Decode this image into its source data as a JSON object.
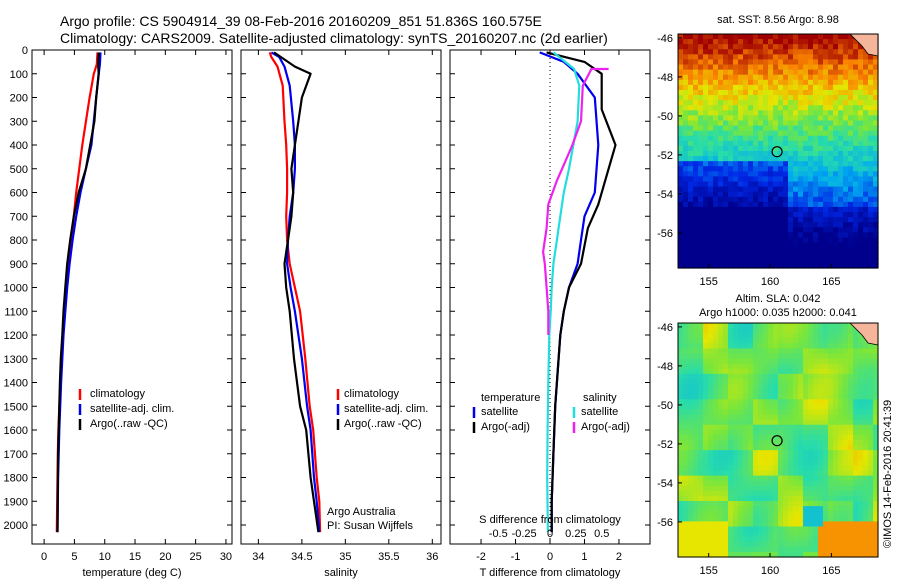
{
  "title": {
    "line1": "Argo profile: CS 5904914_39 08-Feb-2016 20160209_851 51.836S 160.575E",
    "line2": "Climatology: CARS2009. Satellite-adjusted climatology: synTS_20160207.nc (2d earlier)"
  },
  "colors": {
    "climatology": "#ff0000",
    "satellite": "#0000ee",
    "argo": "#000000",
    "sat_salinity": "#22dddd",
    "argo_salinity_adj": "#ee22ee",
    "land": "#f4b59a"
  },
  "chart_data": [
    {
      "type": "line",
      "xlabel": "temperature (deg C)",
      "ylabel": "",
      "xlim": [
        -2,
        31
      ],
      "ylim": [
        2080,
        0
      ],
      "x_ticks": [
        0,
        5,
        10,
        15,
        20,
        25,
        30
      ],
      "y_ticks": [
        0,
        100,
        200,
        300,
        400,
        500,
        600,
        700,
        800,
        900,
        1000,
        1100,
        1200,
        1300,
        1400,
        1500,
        1600,
        1700,
        1800,
        1900,
        2000
      ],
      "legend": [
        "climatology",
        "satellite-adj. clim.",
        "Argo(..raw -QC)"
      ],
      "legend_position": "lower-middle",
      "series": [
        {
          "name": "climatology",
          "color": "#ff0000",
          "x": [
            8.8,
            8.7,
            8.2,
            7.5,
            6.3,
            5.3,
            4.9,
            4.5,
            4.1,
            3.7,
            3.4,
            3.1,
            2.9,
            2.7,
            2.5,
            2.35,
            2.25,
            2.2,
            2.15,
            2.1
          ],
          "y": [
            10,
            60,
            100,
            200,
            400,
            600,
            700,
            800,
            900,
            1000,
            1100,
            1200,
            1300,
            1400,
            1500,
            1600,
            1700,
            1800,
            1900,
            2030
          ]
        },
        {
          "name": "satellite-adj. clim.",
          "color": "#0000ee",
          "x": [
            9.3,
            9.2,
            9.0,
            8.6,
            7.8,
            6.9,
            6.0,
            5.3,
            4.7,
            4.2,
            3.8,
            3.5,
            3.2,
            3.0,
            2.8,
            2.65,
            2.5,
            2.4,
            2.3,
            2.2
          ],
          "y": [
            10,
            60,
            100,
            200,
            400,
            500,
            600,
            700,
            800,
            900,
            1000,
            1100,
            1200,
            1300,
            1400,
            1500,
            1600,
            1700,
            1800,
            2030
          ]
        },
        {
          "name": "Argo(..raw -QC)",
          "color": "#000000",
          "x": [
            9.0,
            8.9,
            9.0,
            8.6,
            8.3,
            7.6,
            6.9,
            5.7,
            4.9,
            4.3,
            3.8,
            3.5,
            3.2,
            3.0,
            2.75,
            2.6,
            2.5,
            2.4,
            2.3,
            2.2
          ],
          "y": [
            10,
            60,
            100,
            200,
            300,
            400,
            500,
            600,
            700,
            800,
            900,
            1000,
            1100,
            1200,
            1300,
            1400,
            1500,
            1600,
            1700,
            2030
          ]
        }
      ]
    },
    {
      "type": "line",
      "xlabel": "salinity",
      "xlim": [
        33.8,
        36.1
      ],
      "ylim": [
        2080,
        0
      ],
      "x_ticks": [
        34,
        34.5,
        35,
        35.5,
        36
      ],
      "legend": [
        "climatology",
        "satellite-adj. clim.",
        "Argo(..raw -QC)"
      ],
      "legend_position": "lower-right",
      "annotation": [
        "Argo Australia",
        "PI: Susan Wijffels"
      ],
      "series": [
        {
          "name": "climatology",
          "color": "#ff0000",
          "x": [
            34.13,
            34.15,
            34.22,
            34.28,
            34.3,
            34.32,
            34.33,
            34.33,
            34.32,
            34.33,
            34.36,
            34.42,
            34.48,
            34.54,
            34.59,
            34.63,
            34.67,
            34.7,
            34.71
          ],
          "y": [
            10,
            30,
            70,
            150,
            300,
            400,
            500,
            600,
            700,
            800,
            900,
            1000,
            1100,
            1300,
            1500,
            1600,
            1800,
            1900,
            2030
          ]
        },
        {
          "name": "satellite-adj. clim.",
          "color": "#0000ee",
          "x": [
            34.15,
            34.24,
            34.3,
            34.36,
            34.4,
            34.42,
            34.42,
            34.4,
            34.36,
            34.34,
            34.33,
            34.37,
            34.42,
            34.5,
            34.56,
            34.6,
            34.64,
            34.67,
            34.7
          ],
          "y": [
            10,
            30,
            70,
            150,
            300,
            400,
            500,
            600,
            700,
            800,
            900,
            1000,
            1100,
            1300,
            1500,
            1600,
            1800,
            1900,
            2030
          ]
        },
        {
          "name": "Argo(..raw -QC)",
          "color": "#000000",
          "x": [
            34.18,
            34.3,
            34.42,
            34.6,
            34.5,
            34.42,
            34.38,
            34.4,
            34.38,
            34.34,
            34.3,
            34.32,
            34.36,
            34.41,
            34.48,
            34.55,
            34.6,
            34.64,
            34.69
          ],
          "y": [
            10,
            40,
            70,
            100,
            200,
            400,
            500,
            600,
            700,
            800,
            900,
            1000,
            1100,
            1300,
            1500,
            1600,
            1800,
            1900,
            2030
          ]
        }
      ]
    },
    {
      "type": "line",
      "xlabel": "T difference from climatology",
      "xlabel_top": "S difference from climatology",
      "xlim": [
        -2.9,
        2.9
      ],
      "ylim": [
        2080,
        0
      ],
      "x_ticks": [
        -2,
        -1,
        0,
        1,
        2
      ],
      "x_ticks_s": [
        -0.5,
        -0.25,
        0,
        0.25,
        0.5
      ],
      "legend_temperature": {
        "title": "temperature",
        "items": [
          "satellite",
          "Argo(-adj)"
        ]
      },
      "legend_salinity": {
        "title": "salinity",
        "items": [
          "satellite",
          "Argo(-adj)"
        ]
      },
      "series": [
        {
          "name": "temperature satellite",
          "color": "#0000ee",
          "x": [
            -0.3,
            0.4,
            0.8,
            1.3,
            1.4,
            1.3,
            1.0,
            0.9,
            0.8,
            0.55,
            0.4,
            0.3,
            0.2,
            0.15,
            0.1,
            0.05,
            0.05
          ],
          "y": [
            10,
            50,
            100,
            200,
            400,
            600,
            700,
            800,
            900,
            1000,
            1100,
            1200,
            1400,
            1500,
            1700,
            1900,
            2030
          ]
        },
        {
          "name": "temperature Argo(-adj)",
          "color": "#000000",
          "x": [
            -0.1,
            1.0,
            1.5,
            1.5,
            1.9,
            1.7,
            1.4,
            1.1,
            0.9,
            0.55,
            0.4,
            0.3,
            0.2,
            0.15,
            0.1,
            0.05,
            0.05
          ],
          "y": [
            10,
            50,
            100,
            250,
            400,
            500,
            650,
            750,
            900,
            1000,
            1100,
            1200,
            1400,
            1500,
            1700,
            1900,
            2030
          ]
        },
        {
          "name": "salinity satellite",
          "color": "#22dddd",
          "x": [
            0.1,
            0.7,
            0.85,
            0.8,
            0.55,
            0.4,
            0.3,
            0.2,
            0.1,
            0.05,
            0.02,
            -0.02,
            -0.05,
            -0.07,
            -0.08,
            -0.06
          ],
          "y": [
            10,
            80,
            150,
            300,
            500,
            600,
            700,
            800,
            900,
            1000,
            1100,
            1200,
            1400,
            1600,
            1800,
            2030
          ]
        },
        {
          "name": "salinity Argo(-adj)",
          "color": "#ee22ee",
          "x": [
            1.7,
            1.2,
            0.95,
            0.9,
            0.65,
            0.35,
            0.2,
            -0.05,
            -0.1,
            -0.2,
            -0.15,
            -0.1,
            -0.05,
            -0.05
          ],
          "y": [
            80,
            80,
            150,
            300,
            400,
            500,
            550,
            650,
            750,
            850,
            900,
            1000,
            1100,
            1200
          ]
        }
      ]
    },
    {
      "type": "heatmap",
      "title": "sat. SST: 8.56 Argo: 8.98",
      "x_ticks": [
        155,
        160,
        165
      ],
      "y_ticks": [
        -46,
        -48,
        -50,
        -52,
        -54,
        -56
      ],
      "xlim": [
        152.5,
        168.8
      ],
      "ylim": [
        -57.8,
        -45.8
      ],
      "argo_marker": {
        "lon": 160.575,
        "lat": -51.836
      }
    },
    {
      "type": "heatmap",
      "title_lines": [
        "Altim. SLA: 0.042",
        "Argo h1000: 0.035 h2000: 0.041"
      ],
      "x_ticks": [
        155,
        160,
        165
      ],
      "y_ticks": [
        -46,
        -48,
        -50,
        -52,
        -54,
        -56
      ],
      "xlim": [
        152.5,
        168.8
      ],
      "ylim": [
        -57.8,
        -45.8
      ],
      "argo_marker": {
        "lon": 160.575,
        "lat": -51.836
      }
    }
  ],
  "stamp": "©IMOS 14-Feb-2016 20:41:39"
}
